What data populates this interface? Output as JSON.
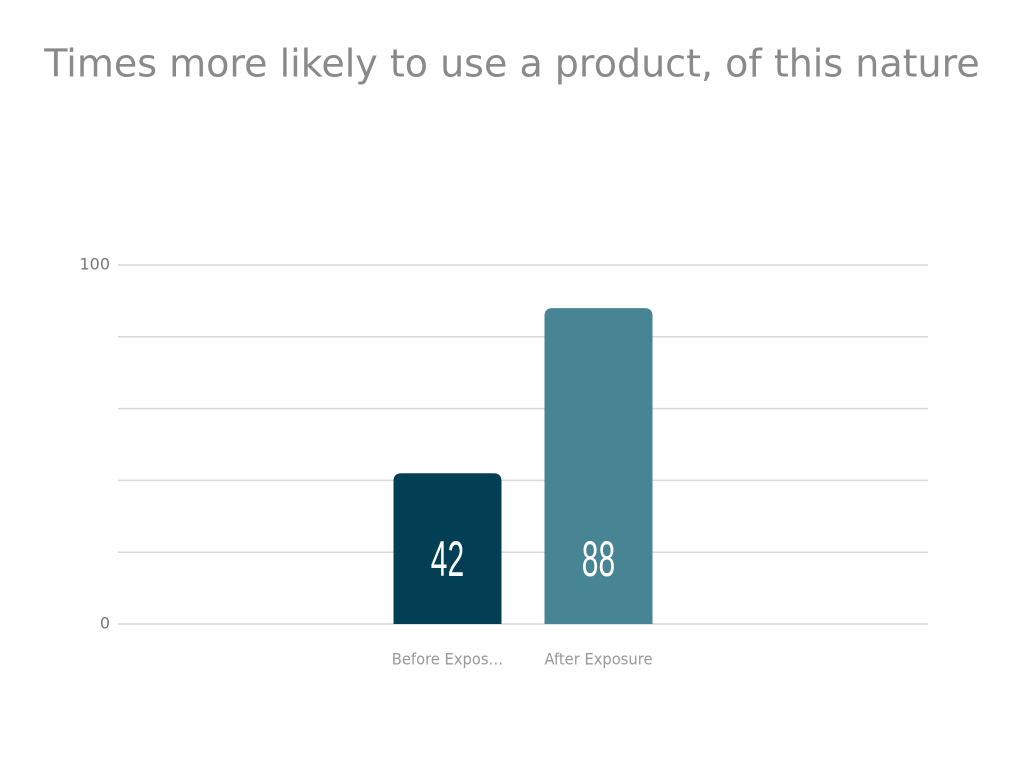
{
  "chart_data": {
    "type": "bar",
    "title": "Times more likely to use a product, of this nature",
    "categories": [
      "Before Expos…",
      "After Exposure"
    ],
    "values": [
      42,
      88
    ],
    "colors": [
      "#033f54",
      "#478494"
    ],
    "ylim": [
      0,
      100
    ],
    "yticks": [
      0,
      {
        "value": 20,
        "label": null
      },
      {
        "value": 40,
        "label": null
      },
      {
        "value": 60,
        "label": null
      },
      {
        "value": 80,
        "label": null
      },
      100
    ],
    "grid": true
  }
}
